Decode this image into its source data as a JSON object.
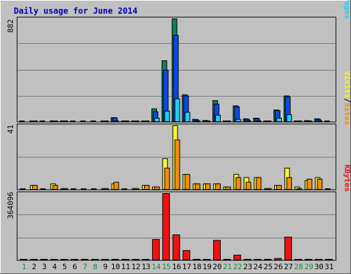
{
  "title": "Daily usage for June 2014",
  "colors": {
    "hits": "#0e7f5c",
    "files": "#0b48e6",
    "pages": "#26ccf2",
    "visits": "#f5f52a",
    "sites": "#f28c0c",
    "kbytes": "#ee1111",
    "weekend": "#1e8a3c",
    "weekday": "#000000"
  },
  "right_labels": {
    "hits": "Hits",
    "files": "Files",
    "pages": "Pages",
    "visits": "Visits",
    "sites": "Sites",
    "kbytes": "KBytes",
    "sep": "/"
  },
  "chart_data": [
    {
      "type": "bar",
      "panel": "hits-files-pages",
      "ymax_label": "882",
      "ylim": [
        0,
        882
      ],
      "x": [
        1,
        2,
        3,
        4,
        5,
        6,
        7,
        8,
        9,
        10,
        11,
        12,
        13,
        14,
        15,
        16,
        17,
        18,
        19,
        20,
        21,
        22,
        23,
        24,
        25,
        26,
        27,
        28,
        29,
        30,
        31
      ],
      "weekend_days": [
        1,
        7,
        8,
        14,
        15,
        21,
        22,
        28,
        29
      ],
      "series": [
        {
          "name": "Hits",
          "values": [
            0,
            10,
            0,
            8,
            6,
            0,
            0,
            0,
            4,
            40,
            4,
            8,
            12,
            115,
            525,
            882,
            235,
            25,
            15,
            185,
            10,
            140,
            30,
            35,
            8,
            105,
            225,
            5,
            14,
            30,
            0
          ]
        },
        {
          "name": "Files",
          "values": [
            0,
            8,
            0,
            6,
            4,
            0,
            0,
            0,
            3,
            38,
            3,
            6,
            10,
            90,
            445,
            742,
            225,
            22,
            12,
            155,
            8,
            132,
            25,
            30,
            6,
            100,
            218,
            4,
            12,
            25,
            0
          ]
        },
        {
          "name": "Pages",
          "values": [
            0,
            4,
            0,
            3,
            2,
            0,
            0,
            0,
            1,
            12,
            1,
            3,
            4,
            35,
            95,
            200,
            85,
            10,
            5,
            60,
            3,
            25,
            10,
            12,
            2,
            35,
            65,
            2,
            5,
            8,
            0
          ]
        }
      ]
    },
    {
      "type": "bar",
      "panel": "visits-sites",
      "ymax_label": "41",
      "ylim": [
        0,
        41
      ],
      "x": [
        1,
        2,
        3,
        4,
        5,
        6,
        7,
        8,
        9,
        10,
        11,
        12,
        13,
        14,
        15,
        16,
        17,
        18,
        19,
        20,
        21,
        22,
        23,
        24,
        25,
        26,
        27,
        28,
        29,
        30,
        31
      ],
      "series": [
        {
          "name": "Visits",
          "values": [
            0,
            3,
            0,
            4,
            1,
            0,
            0,
            0,
            1,
            4,
            0,
            1,
            3,
            2,
            20,
            41,
            10,
            4,
            4,
            4,
            2,
            10,
            8,
            8,
            1,
            3,
            14,
            2,
            6,
            8,
            0
          ]
        },
        {
          "name": "Sites",
          "values": [
            0,
            3,
            0,
            3,
            1,
            0,
            0,
            0,
            1,
            5,
            0,
            1,
            3,
            2,
            14,
            32,
            10,
            4,
            4,
            4,
            2,
            8,
            5,
            8,
            1,
            3,
            8,
            1,
            7,
            7,
            0
          ]
        }
      ]
    },
    {
      "type": "bar",
      "panel": "kbytes",
      "ymax_label": "364096",
      "ylim": [
        0,
        364096
      ],
      "x": [
        1,
        2,
        3,
        4,
        5,
        6,
        7,
        8,
        9,
        10,
        11,
        12,
        13,
        14,
        15,
        16,
        17,
        18,
        19,
        20,
        21,
        22,
        23,
        24,
        25,
        26,
        27,
        28,
        29,
        30,
        31
      ],
      "series": [
        {
          "name": "KBytes",
          "values": [
            0,
            2000,
            0,
            2000,
            1500,
            0,
            0,
            0,
            1000,
            1500,
            0,
            1000,
            2000,
            115000,
            364096,
            140000,
            55000,
            2000,
            1500,
            110000,
            1500,
            30000,
            3000,
            3000,
            1000,
            12000,
            128000,
            1000,
            2000,
            3000,
            0
          ]
        }
      ]
    }
  ]
}
